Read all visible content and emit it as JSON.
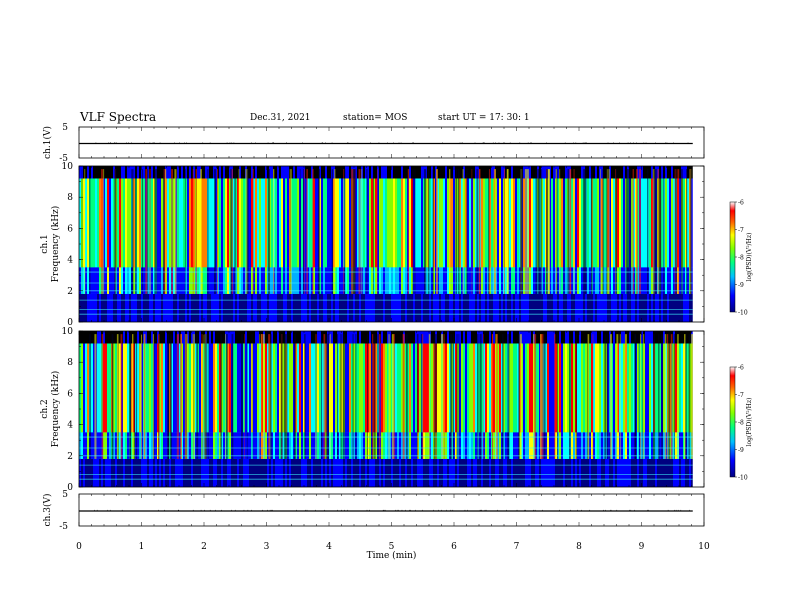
{
  "header": {
    "title": "VLF Spectra",
    "date": "Dec.31, 2021",
    "station": "station= MOS",
    "start": "start  UT =   17: 30: 1"
  },
  "chart_data": [
    {
      "type": "line",
      "id": "ch1-voltage",
      "ylabel": "ch.1(V)",
      "yticks": [
        "5",
        "-5"
      ],
      "ylim": [
        -5,
        5
      ],
      "xlim": [
        0,
        10
      ],
      "series": [
        {
          "x": [
            0,
            9.82
          ],
          "y": [
            0,
            0
          ]
        }
      ]
    },
    {
      "type": "heatmap",
      "id": "ch1-spectrogram",
      "ylabel_line1": "ch.1",
      "ylabel_line2": "Frequency (kHz)",
      "yticks": [
        "0",
        "2",
        "4",
        "6",
        "8",
        "10"
      ],
      "ylim": [
        0,
        10
      ],
      "xlim": [
        0,
        10
      ],
      "data_x_end": 9.82,
      "colorbar": {
        "label": "log(PSD)(V²/Hz)",
        "ticks": [
          "-6",
          "-7",
          "-8",
          "-9",
          "-10"
        ],
        "range": [
          -10,
          -6
        ]
      },
      "colors": [
        "#000080",
        "#0000ff",
        "#00b0ff",
        "#00ffff",
        "#00ff80",
        "#80ff00",
        "#ffff00",
        "#ff8000",
        "#ff0000"
      ]
    },
    {
      "type": "heatmap",
      "id": "ch2-spectrogram",
      "ylabel_line1": "ch.2",
      "ylabel_line2": "Frequency (kHz)",
      "yticks": [
        "0",
        "2",
        "4",
        "6",
        "8",
        "10"
      ],
      "ylim": [
        0,
        10
      ],
      "xlim": [
        0,
        10
      ],
      "data_x_end": 9.82,
      "colorbar": {
        "label": "log(PSD)(V²/Hz)",
        "ticks": [
          "-6",
          "-7",
          "-8",
          "-9",
          "-10"
        ],
        "range": [
          -10,
          -6
        ]
      },
      "colors": [
        "#000080",
        "#0000ff",
        "#00b0ff",
        "#00ffff",
        "#00ff80",
        "#80ff00",
        "#ffff00",
        "#ff8000",
        "#ff0000"
      ]
    },
    {
      "type": "line",
      "id": "ch3-voltage",
      "ylabel": "ch.3(V)",
      "yticks": [
        "5",
        "-5"
      ],
      "ylim": [
        -5,
        5
      ],
      "xlim": [
        0,
        10
      ],
      "series": [
        {
          "x": [
            0,
            9.82
          ],
          "y": [
            0,
            0
          ]
        }
      ]
    }
  ],
  "xaxis": {
    "label": "Time (min)",
    "ticks": [
      "0",
      "1",
      "2",
      "3",
      "4",
      "5",
      "6",
      "7",
      "8",
      "9",
      "10"
    ]
  }
}
